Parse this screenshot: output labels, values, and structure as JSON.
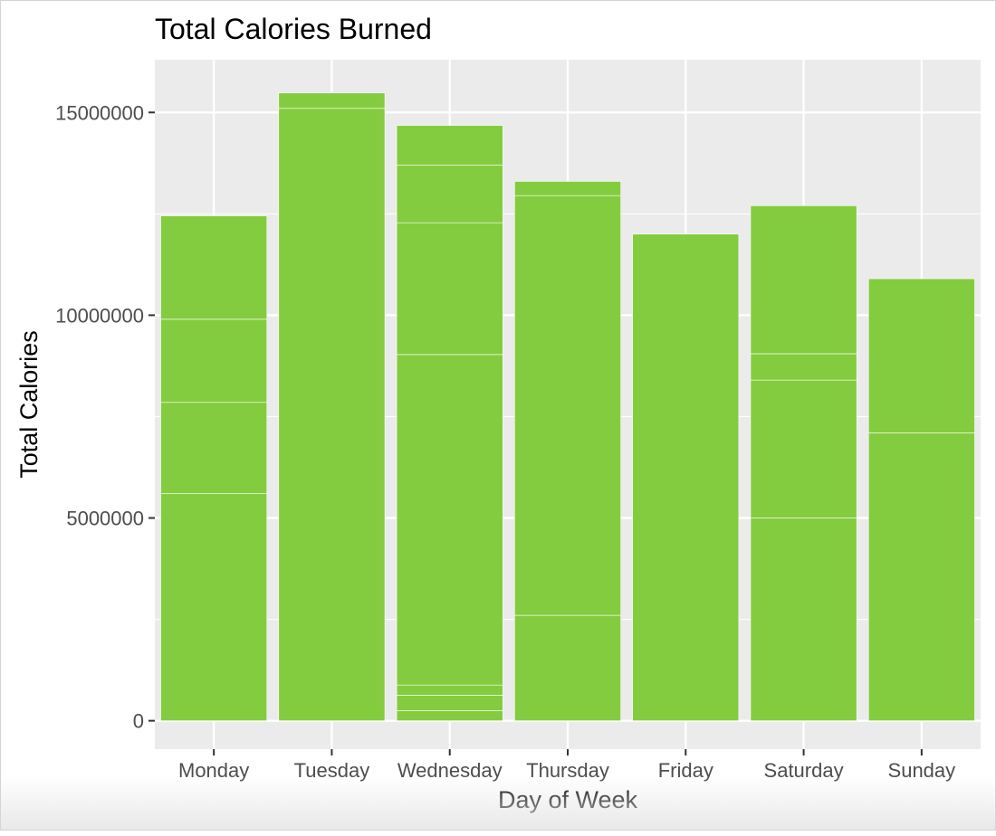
{
  "colors": {
    "panel": "#ebebeb",
    "grid": "#ffffff",
    "bar": "#84cc3f",
    "text": "#000000",
    "tick": "#4d4d4d"
  },
  "chart_data": {
    "type": "bar",
    "title": "Total Calories Burned",
    "xlabel": "Day of Week",
    "ylabel": "Total Calories",
    "categories": [
      "Monday",
      "Tuesday",
      "Wednesday",
      "Thursday",
      "Friday",
      "Saturday",
      "Sunday"
    ],
    "stacked_segments": [
      [
        5600000,
        2250000,
        2050000,
        2550000
      ],
      [
        15100000,
        380000
      ],
      [
        250000,
        380000,
        250000,
        8150000,
        3250000,
        1420000,
        980000
      ],
      [
        2600000,
        10350000,
        350000
      ],
      [
        12000000
      ],
      [
        5000000,
        3400000,
        650000,
        3650000
      ],
      [
        7100000,
        3800000
      ]
    ],
    "totals": [
      12450000,
      15480000,
      14680000,
      13300000,
      12000000,
      12700000,
      10900000
    ],
    "yticks": [
      0,
      5000000,
      10000000,
      15000000
    ],
    "ytick_labels": [
      "0",
      "5000000",
      "10000000",
      "15000000"
    ],
    "ylim": [
      -700000,
      16300000
    ],
    "grid": true,
    "legend": "none"
  }
}
